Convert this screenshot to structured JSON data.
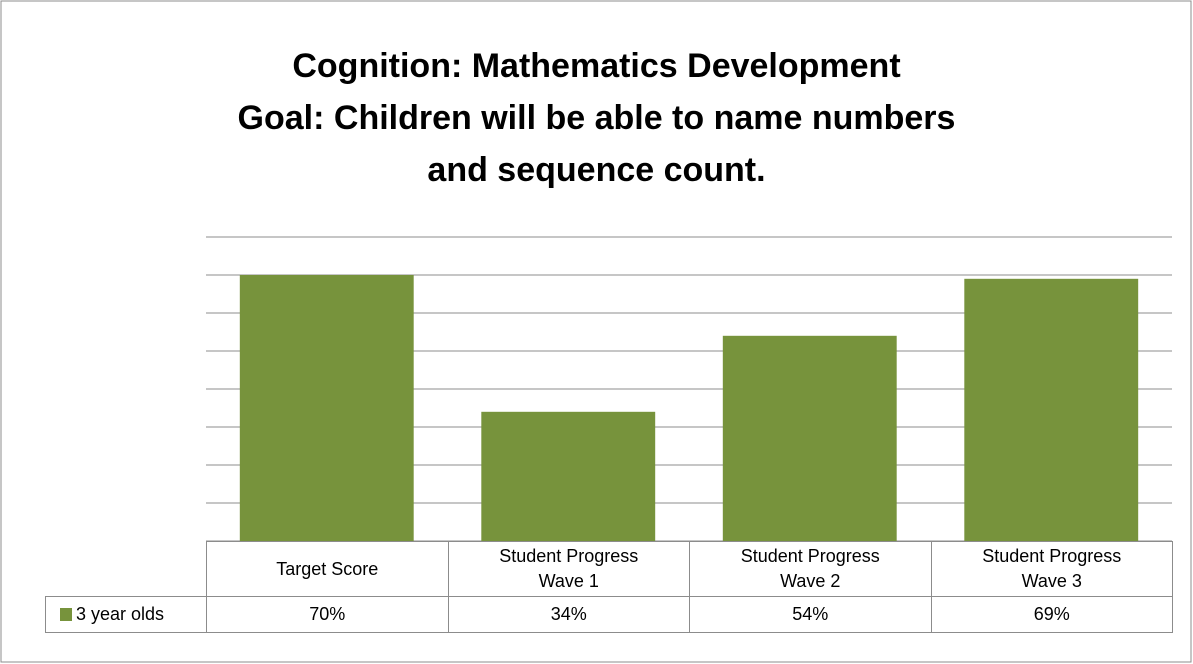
{
  "chart_data": {
    "type": "bar",
    "title": [
      "Cognition: Mathematics Development",
      "Goal: Children will be able to name numbers",
      "and sequence count."
    ],
    "categories": [
      "Target Score",
      "Student Progress Wave 1",
      "Student Progress Wave 2",
      "Student Progress Wave 3"
    ],
    "series": [
      {
        "name": "3 year olds",
        "color": "#77933c",
        "values": [
          70,
          34,
          54,
          69
        ],
        "value_labels": [
          "70%",
          "34%",
          "54%",
          "69%"
        ]
      }
    ],
    "ylim": [
      0,
      80
    ],
    "yticks": [
      0,
      10,
      20,
      30,
      40,
      50,
      60,
      70,
      80
    ],
    "grid": true
  }
}
